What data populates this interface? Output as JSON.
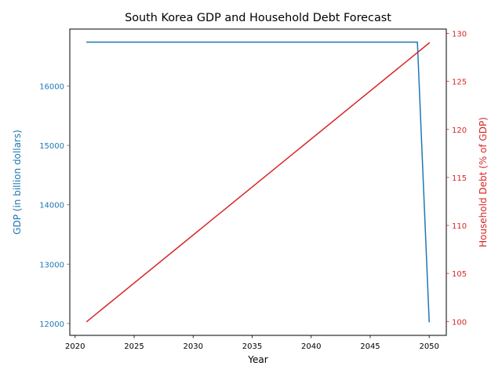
{
  "chart_data": {
    "type": "line",
    "title": "South Korea GDP and Household Debt Forecast",
    "xlabel": "Year",
    "y_left_label": "GDP (in billion dollars)",
    "y_right_label": "Household Debt (% of GDP)",
    "xlim": [
      2019.55,
      2051.45
    ],
    "y_left_lim": [
      11800,
      16960
    ],
    "y_right_lim": [
      98.55,
      130.45
    ],
    "x_ticks": [
      2020,
      2025,
      2030,
      2035,
      2040,
      2045,
      2050
    ],
    "y_left_ticks": [
      12000,
      13000,
      14000,
      15000,
      16000
    ],
    "y_right_ticks": [
      100,
      105,
      110,
      115,
      120,
      125,
      130
    ],
    "grid": false,
    "colors": {
      "gdp": "#1f77b4",
      "debt": "#d62728",
      "axis": "#000000"
    },
    "series": [
      {
        "key": "gdp",
        "axis": "left",
        "x": [
          2021,
          2049,
          2050
        ],
        "y": [
          16740,
          16740,
          12030
        ]
      },
      {
        "key": "debt",
        "axis": "right",
        "x": [
          2021,
          2050
        ],
        "y": [
          100,
          129
        ]
      }
    ]
  }
}
